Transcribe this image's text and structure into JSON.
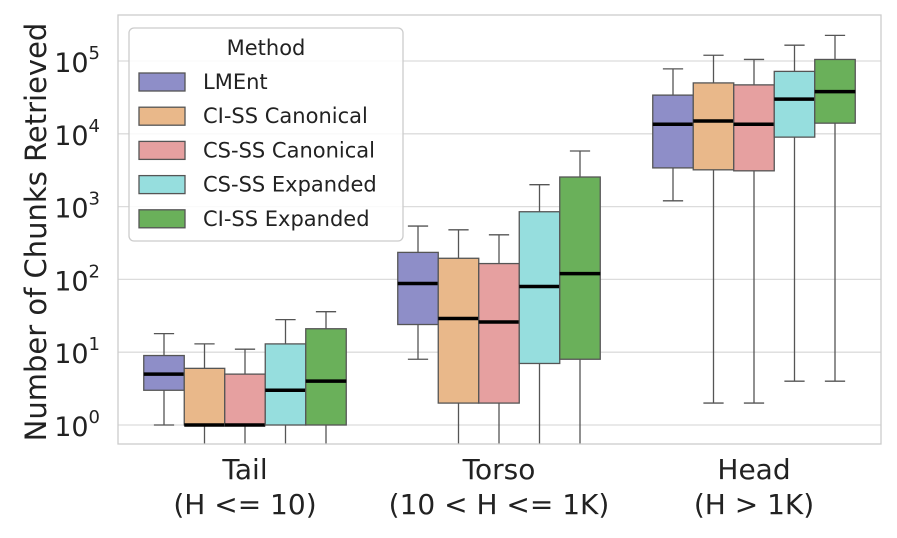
{
  "chart_data": {
    "type": "boxplot",
    "title": "",
    "xlabel": "",
    "ylabel": "Number of Chunks Retrieved",
    "yscale": "log",
    "ylim": [
      0.55,
      400000
    ],
    "grid": true,
    "yticks": [
      {
        "base": "10",
        "exp": "0",
        "value": 1
      },
      {
        "base": "10",
        "exp": "1",
        "value": 10
      },
      {
        "base": "10",
        "exp": "2",
        "value": 100
      },
      {
        "base": "10",
        "exp": "3",
        "value": 1000
      },
      {
        "base": "10",
        "exp": "4",
        "value": 10000
      },
      {
        "base": "10",
        "exp": "5",
        "value": 100000
      }
    ],
    "categories": [
      {
        "line1": "Tail",
        "line2": "(H <= 10)"
      },
      {
        "line1": "Torso",
        "line2": "(10 < H <= 1K)"
      },
      {
        "line1": "Head",
        "line2": "(H > 1K)"
      }
    ],
    "legend": {
      "title": "Method",
      "position": "upper-left"
    },
    "series": [
      {
        "name": "LMEnt",
        "color": "#8e8ec8",
        "boxes": [
          {
            "whislo": 1,
            "q1": 3,
            "med": 5,
            "q3": 9,
            "whishi": 18
          },
          {
            "whislo": 8,
            "q1": 24,
            "med": 88,
            "q3": 235,
            "whishi": 540
          },
          {
            "whislo": 1200,
            "q1": 3400,
            "med": 13500,
            "q3": 34000,
            "whishi": 78000
          }
        ]
      },
      {
        "name": "CI-SS Canonical",
        "color": "#e9b88a",
        "boxes": [
          {
            "whislo": 0.55,
            "q1": 1,
            "med": 1,
            "q3": 6,
            "whishi": 13
          },
          {
            "whislo": 0.55,
            "q1": 2,
            "med": 29,
            "q3": 195,
            "whishi": 480
          },
          {
            "whislo": 2,
            "q1": 3200,
            "med": 15000,
            "q3": 50000,
            "whishi": 120000
          }
        ]
      },
      {
        "name": "CS-SS Canonical",
        "color": "#e6a0a0",
        "boxes": [
          {
            "whislo": 0.55,
            "q1": 1,
            "med": 1,
            "q3": 5,
            "whishi": 11
          },
          {
            "whislo": 0.55,
            "q1": 2,
            "med": 26,
            "q3": 165,
            "whishi": 410
          },
          {
            "whislo": 2,
            "q1": 3100,
            "med": 13500,
            "q3": 47000,
            "whishi": 105000
          }
        ]
      },
      {
        "name": "CS-SS Expanded",
        "color": "#96dede",
        "boxes": [
          {
            "whislo": 0.55,
            "q1": 1,
            "med": 3,
            "q3": 13,
            "whishi": 28
          },
          {
            "whislo": 0.55,
            "q1": 7,
            "med": 80,
            "q3": 850,
            "whishi": 2000
          },
          {
            "whislo": 4,
            "q1": 9000,
            "med": 30000,
            "q3": 72000,
            "whishi": 165000
          }
        ]
      },
      {
        "name": "CI-SS Expanded",
        "color": "#6ab05a",
        "boxes": [
          {
            "whislo": 0.55,
            "q1": 1,
            "med": 4,
            "q3": 21,
            "whishi": 36
          },
          {
            "whislo": 0.55,
            "q1": 8,
            "med": 120,
            "q3": 2550,
            "whishi": 5800
          },
          {
            "whislo": 4,
            "q1": 14000,
            "med": 38000,
            "q3": 105000,
            "whishi": 225000
          }
        ]
      }
    ]
  }
}
